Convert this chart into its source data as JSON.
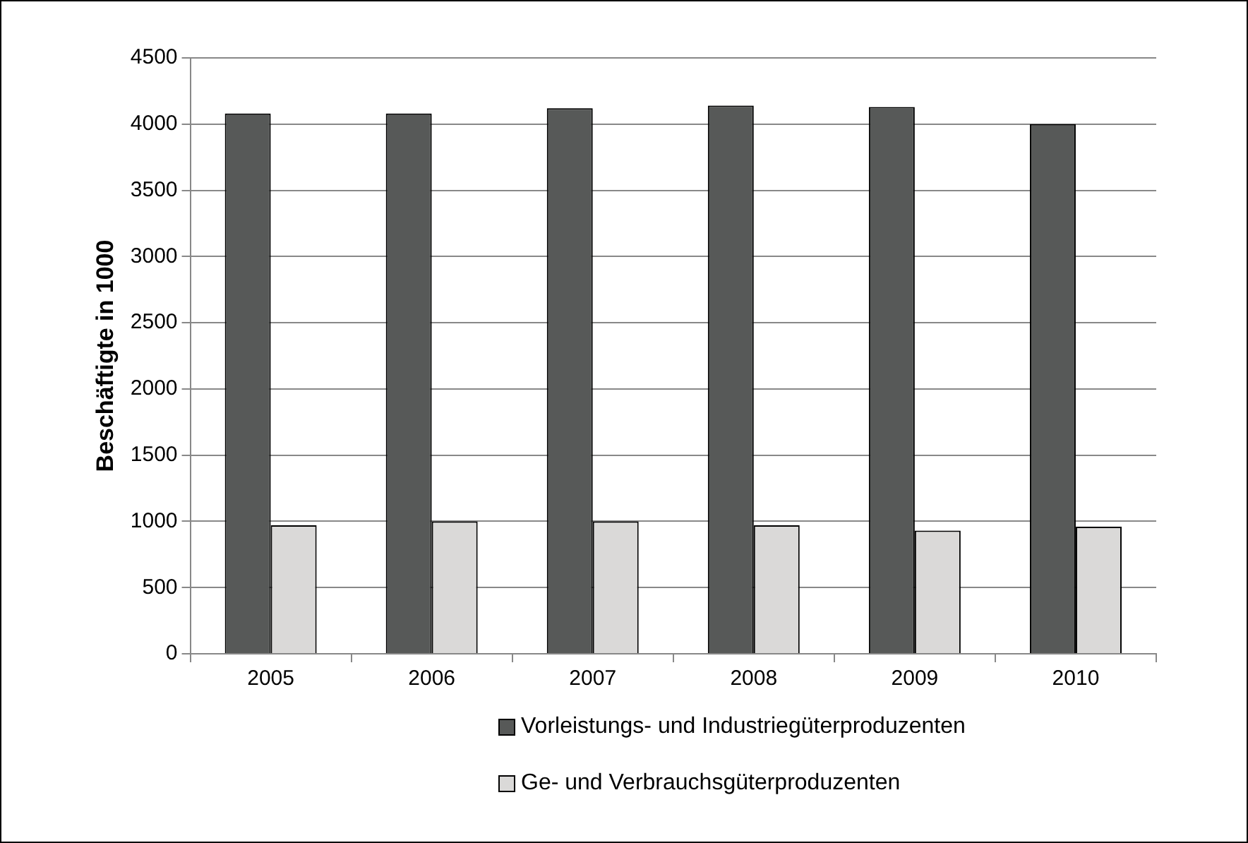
{
  "chart_data": {
    "type": "bar",
    "ylabel": "Beschäftigte in 1000",
    "categories": [
      "2005",
      "2006",
      "2007",
      "2008",
      "2009",
      "2010"
    ],
    "series": [
      {
        "name": "Vorleistungs- und Industriegüterproduzenten",
        "color": "#575958",
        "values": [
          4080,
          4080,
          4120,
          4140,
          4130,
          4000
        ]
      },
      {
        "name": "Ge- und Verbrauchsgüterproduzenten",
        "color": "#dad9d8",
        "values": [
          970,
          1000,
          1000,
          970,
          930,
          960
        ]
      }
    ],
    "ylim": [
      0,
      4500
    ],
    "yticks": [
      0,
      500,
      1000,
      1500,
      2000,
      2500,
      3000,
      3500,
      4000,
      4500
    ],
    "grid": "y",
    "legend": "bottom"
  }
}
